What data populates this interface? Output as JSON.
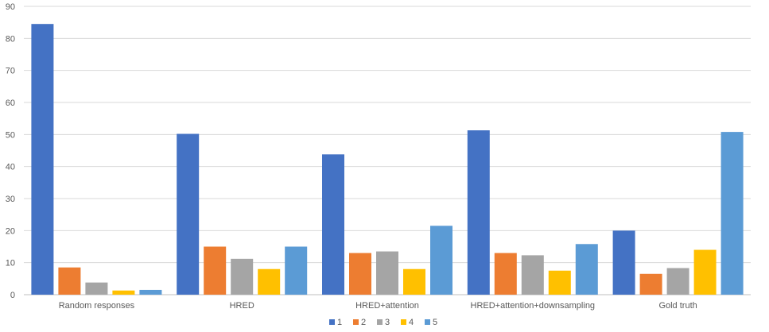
{
  "chart_data": {
    "type": "bar",
    "categories": [
      "Random  responses",
      "HRED",
      "HRED+attention",
      "HRED+attention+downsampling",
      "Gold truth"
    ],
    "series": [
      {
        "name": "1",
        "color": "#4472C4",
        "values": [
          84.5,
          50.2,
          43.8,
          51.3,
          20.0
        ]
      },
      {
        "name": "2",
        "color": "#ED7D31",
        "values": [
          8.5,
          15.0,
          13.0,
          13.0,
          6.5
        ]
      },
      {
        "name": "3",
        "color": "#A5A5A5",
        "values": [
          3.8,
          11.2,
          13.5,
          12.3,
          8.3
        ]
      },
      {
        "name": "4",
        "color": "#FFC000",
        "values": [
          1.3,
          8.0,
          8.0,
          7.5,
          14.0
        ]
      },
      {
        "name": "5",
        "color": "#5B9BD5",
        "values": [
          1.5,
          15.0,
          21.5,
          15.8,
          50.8
        ]
      }
    ],
    "ylim": [
      0,
      90
    ],
    "yticks": [
      0,
      10,
      20,
      30,
      40,
      50,
      60,
      70,
      80,
      90
    ],
    "grid": true,
    "legend": "bottom-center"
  }
}
